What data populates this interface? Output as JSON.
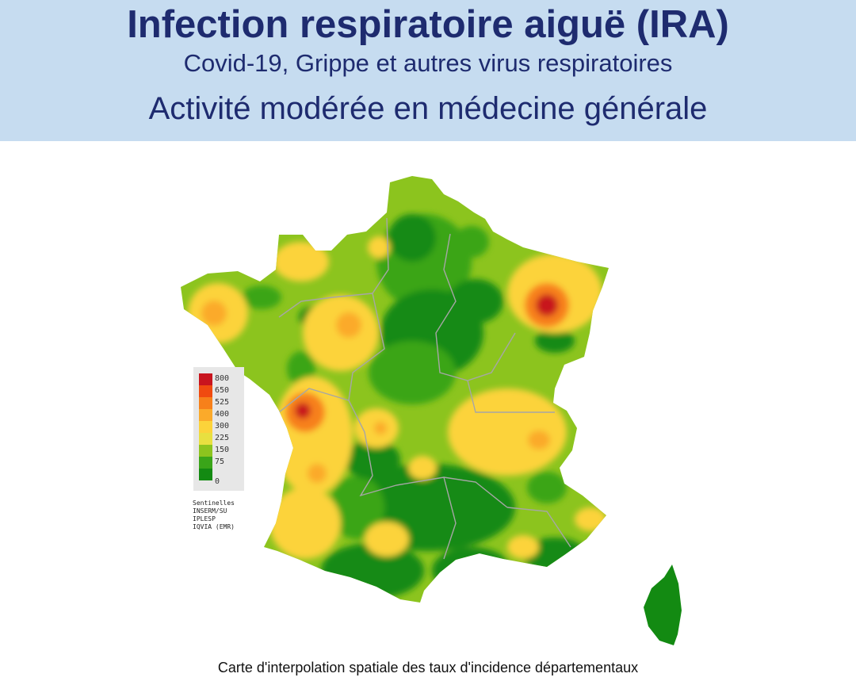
{
  "header": {
    "title": "Infection respiratoire aiguë (IRA)",
    "subtitle": "Covid-19, Grippe et autres virus respiratoires",
    "status": "Activité modérée en médecine générale"
  },
  "legend": {
    "levels": [
      {
        "label": "800",
        "color": "#c8141e"
      },
      {
        "label": "650",
        "color": "#f04a10"
      },
      {
        "label": "525",
        "color": "#f7801a"
      },
      {
        "label": "400",
        "color": "#fbaa2a"
      },
      {
        "label": "300",
        "color": "#fcd33a"
      },
      {
        "label": "225",
        "color": "#e8e040"
      },
      {
        "label": "150",
        "color": "#8cc41e"
      },
      {
        "label": "75",
        "color": "#3aa519"
      },
      {
        "label": "0",
        "color": "#138a12"
      }
    ]
  },
  "source_lines": [
    "Sentinelles",
    "INSERM/SU",
    "IPLESP",
    "IQVIA (EMR)"
  ],
  "caption": "Carte d'interpolation spatiale des taux d'incidence départementaux"
}
